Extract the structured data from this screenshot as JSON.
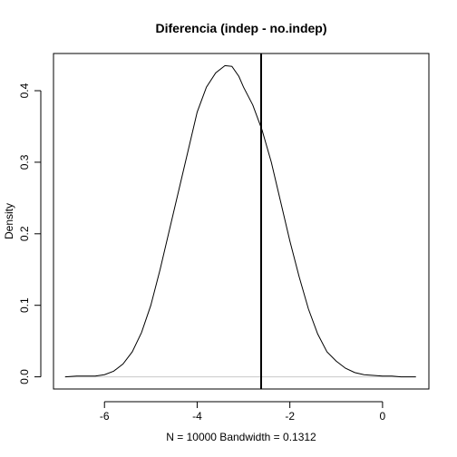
{
  "chart_data": {
    "type": "line",
    "title": "Diferencia (indep - no.indep)",
    "xlabel": "N = 10000   Bandwidth = 0.1312",
    "ylabel": "Density",
    "xlim": [
      -7.1,
      1.0
    ],
    "ylim": [
      -0.017,
      0.452
    ],
    "x_ticks": [
      -6,
      -4,
      -2,
      0
    ],
    "x_tick_labels": [
      "-6",
      "-4",
      "-2",
      "0"
    ],
    "y_ticks": [
      0.0,
      0.1,
      0.2,
      0.3,
      0.4
    ],
    "y_tick_labels": [
      "0.0",
      "0.1",
      "0.2",
      "0.3",
      "0.4"
    ],
    "grid": false,
    "vertical_line_x": -2.62,
    "series": [
      {
        "name": "density",
        "x": [
          -6.85,
          -6.6,
          -6.4,
          -6.2,
          -6.0,
          -5.8,
          -5.6,
          -5.4,
          -5.2,
          -5.0,
          -4.8,
          -4.6,
          -4.4,
          -4.2,
          -4.0,
          -3.8,
          -3.6,
          -3.4,
          -3.25,
          -3.1,
          -3.0,
          -2.8,
          -2.6,
          -2.4,
          -2.2,
          -2.0,
          -1.8,
          -1.6,
          -1.4,
          -1.2,
          -1.0,
          -0.8,
          -0.6,
          -0.4,
          -0.2,
          0.0,
          0.2,
          0.4,
          0.72
        ],
        "y": [
          0.0,
          0.001,
          0.001,
          0.001,
          0.003,
          0.008,
          0.018,
          0.035,
          0.062,
          0.1,
          0.15,
          0.205,
          0.26,
          0.315,
          0.37,
          0.405,
          0.425,
          0.435,
          0.434,
          0.42,
          0.405,
          0.38,
          0.345,
          0.3,
          0.245,
          0.19,
          0.14,
          0.095,
          0.06,
          0.035,
          0.022,
          0.012,
          0.006,
          0.003,
          0.002,
          0.001,
          0.001,
          0.0,
          0.0
        ]
      }
    ]
  }
}
